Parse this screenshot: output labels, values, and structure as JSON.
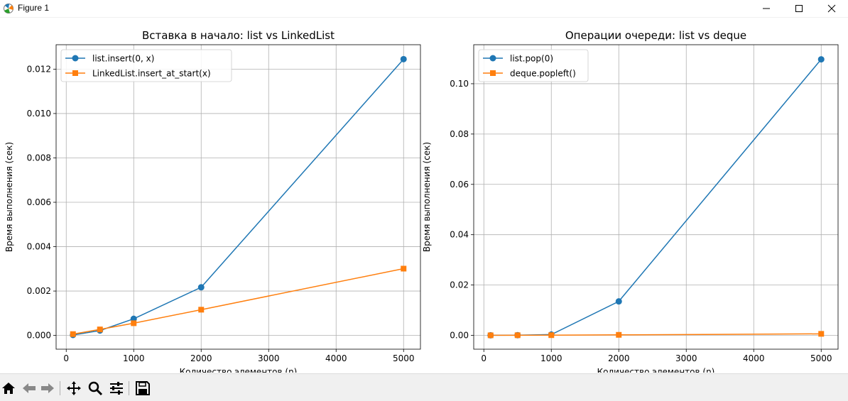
{
  "window": {
    "title": "Figure 1"
  },
  "toolbar": {
    "buttons": [
      {
        "name": "home-icon"
      },
      {
        "name": "back-icon"
      },
      {
        "name": "forward-icon"
      },
      {
        "name": "pan-icon"
      },
      {
        "name": "zoom-icon"
      },
      {
        "name": "configure-subplots-icon"
      },
      {
        "name": "save-icon"
      }
    ]
  },
  "colors": {
    "series1": "#1f77b4",
    "series2": "#ff7f0e",
    "grid": "#b0b0b0"
  },
  "chart_data": [
    {
      "type": "line",
      "title": "Вставка в начало: list vs LinkedList",
      "xlabel": "Количество элементов (n)",
      "ylabel": "Время выполнения (сек)",
      "xlim": [
        -150,
        5250
      ],
      "ylim": [
        -0.00062,
        0.0131
      ],
      "xticks": [
        0,
        1000,
        2000,
        3000,
        4000,
        5000
      ],
      "xtick_labels": [
        "0",
        "1000",
        "2000",
        "3000",
        "4000",
        "5000"
      ],
      "yticks": [
        0,
        0.002,
        0.004,
        0.006,
        0.008,
        0.01,
        0.012
      ],
      "ytick_labels": [
        "0.000",
        "0.002",
        "0.004",
        "0.006",
        "0.008",
        "0.010",
        "0.012"
      ],
      "grid": true,
      "legend": "upper-left",
      "x": [
        100,
        500,
        1000,
        2000,
        5000
      ],
      "series": [
        {
          "name": "list.insert(0, x)",
          "marker": "circle",
          "color": "#1f77b4",
          "values": [
            2e-05,
            0.00022,
            0.00075,
            0.00217,
            0.01245
          ]
        },
        {
          "name": "LinkedList.insert_at_start(x)",
          "marker": "square",
          "color": "#ff7f0e",
          "values": [
            6e-05,
            0.00027,
            0.00055,
            0.00116,
            0.00301
          ]
        }
      ]
    },
    {
      "type": "line",
      "title": "Операции очереди: list vs deque",
      "xlabel": "Количество элементов (n)",
      "ylabel": "Время выполнения (сек)",
      "xlim": [
        -150,
        5250
      ],
      "ylim": [
        -0.0055,
        0.1155
      ],
      "xticks": [
        0,
        1000,
        2000,
        3000,
        4000,
        5000
      ],
      "xtick_labels": [
        "0",
        "1000",
        "2000",
        "3000",
        "4000",
        "5000"
      ],
      "yticks": [
        0,
        0.02,
        0.04,
        0.06,
        0.08,
        0.1
      ],
      "ytick_labels": [
        "0.00",
        "0.02",
        "0.04",
        "0.06",
        "0.08",
        "0.10"
      ],
      "grid": true,
      "legend": "upper-left",
      "x": [
        100,
        500,
        1000,
        2000,
        5000
      ],
      "series": [
        {
          "name": "list.pop(0)",
          "marker": "circle",
          "color": "#1f77b4",
          "values": [
            2e-05,
            8e-05,
            0.0003,
            0.0135,
            0.1097
          ]
        },
        {
          "name": "deque.popleft()",
          "marker": "square",
          "color": "#ff7f0e",
          "values": [
            2e-05,
            5e-05,
            8e-05,
            0.0002,
            0.0006
          ]
        }
      ]
    }
  ]
}
